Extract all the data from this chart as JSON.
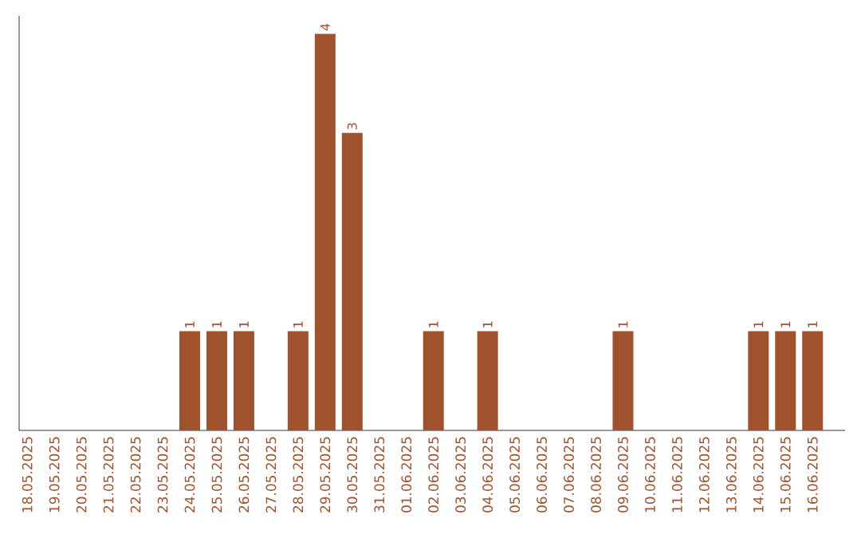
{
  "chart_data": {
    "type": "bar",
    "categories": [
      "18.05.2025",
      "19.05.2025",
      "20.05.2025",
      "21.05.2025",
      "22.05.2025",
      "23.05.2025",
      "24.05.2025",
      "25.05.2025",
      "26.05.2025",
      "27.05.2025",
      "28.05.2025",
      "29.05.2025",
      "30.05.2025",
      "31.05.2025",
      "01.06.2025",
      "02.06.2025",
      "03.06.2025",
      "04.06.2025",
      "05.06.2025",
      "06.06.2025",
      "07.06.2025",
      "08.06.2025",
      "09.06.2025",
      "10.06.2025",
      "11.06.2025",
      "12.06.2025",
      "13.06.2025",
      "14.06.2025",
      "15.06.2025",
      "16.06.2025"
    ],
    "values": [
      0,
      0,
      0,
      0,
      0,
      0,
      1,
      1,
      1,
      0,
      1,
      4,
      3,
      0,
      0,
      1,
      0,
      1,
      0,
      0,
      0,
      0,
      1,
      0,
      0,
      0,
      0,
      1,
      1,
      1
    ],
    "value_labels": [
      null,
      null,
      null,
      null,
      null,
      null,
      "1",
      "1",
      "1",
      null,
      "1",
      "4",
      "3",
      null,
      null,
      "1",
      null,
      "1",
      null,
      null,
      null,
      null,
      "1",
      null,
      null,
      null,
      null,
      "1",
      "1",
      "1"
    ],
    "color": "#a0522d",
    "grid": false
  }
}
